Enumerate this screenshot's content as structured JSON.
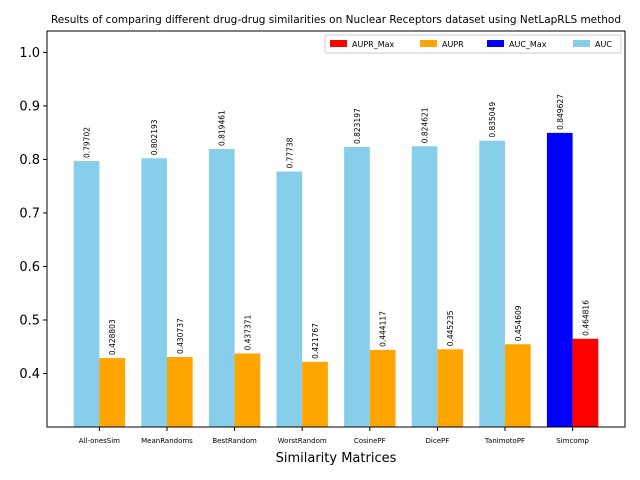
{
  "chart_data": {
    "type": "bar",
    "title": "Results of comparing different drug-drug similarities on Nuclear Receptors dataset using NetLapRLS method",
    "xlabel": "Similarity Matrices",
    "ylabel": "",
    "ylim": [
      0.3,
      1.04
    ],
    "yticks": [
      "0.4",
      "0.5",
      "0.6",
      "0.7",
      "0.8",
      "0.9",
      "1.0"
    ],
    "categories": [
      "All-onesSim",
      "MeanRandoms",
      "BestRandom",
      "WorstRandom",
      "CosinePF",
      "DicePF",
      "TanimotoPF",
      "Simcomp"
    ],
    "series": [
      {
        "name": "AUC",
        "color": "#87ceeb",
        "values": [
          0.79702,
          0.802193,
          0.819461,
          0.77738,
          0.823197,
          0.824621,
          0.835049,
          0.849627
        ],
        "labels": [
          "0.79702",
          "0.802193",
          "0.819461",
          "0.77738",
          "0.823197",
          "0.824621",
          "0.835049",
          "0.849627"
        ]
      },
      {
        "name": "AUPR",
        "color": "#ffa500",
        "values": [
          0.428803,
          0.430737,
          0.437371,
          0.421767,
          0.444117,
          0.445235,
          0.454609,
          0.464816
        ],
        "labels": [
          "0.428803",
          "0.430737",
          "0.437371",
          "0.421767",
          "0.444117",
          "0.445235",
          "0.454609",
          "0.464816"
        ]
      }
    ],
    "highlight": {
      "index": 7,
      "auc_max_color": "#0000ff",
      "aupr_max_color": "#ff0000"
    },
    "legend": {
      "placement": "top-right",
      "entries": [
        {
          "label": "AUPR_Max",
          "color": "#ff0000"
        },
        {
          "label": "AUPR",
          "color": "#ffa500"
        },
        {
          "label": "AUC_Max",
          "color": "#0000ff"
        },
        {
          "label": "AUC",
          "color": "#87ceeb"
        }
      ]
    },
    "grid": false
  }
}
